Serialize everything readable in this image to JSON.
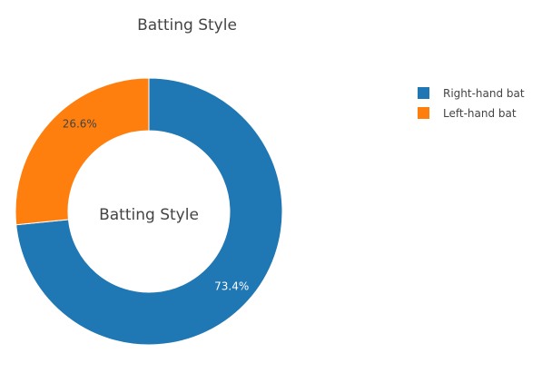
{
  "chart_data": {
    "type": "pie",
    "hole": true,
    "title": "Batting Style",
    "center_label": "Batting Style",
    "legend_position": "top-right",
    "slices": [
      {
        "label": "Right-hand bat",
        "percent": 73.4,
        "percent_text": "73.4%",
        "color": "#1f77b4",
        "label_color": "#ffffff"
      },
      {
        "label": "Left-hand bat",
        "percent": 26.6,
        "percent_text": "26.6%",
        "color": "#ff7f0e",
        "label_color": "#444444"
      }
    ]
  }
}
